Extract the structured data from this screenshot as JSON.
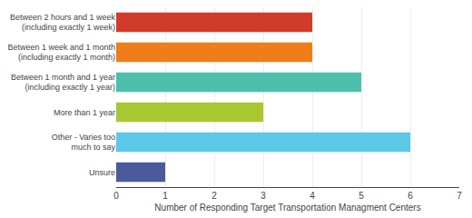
{
  "chart_data": {
    "type": "bar",
    "orientation": "horizontal",
    "categories": [
      "Between 2 hours and 1 week\n(including exactly 1 week)",
      "Between 1 week and 1 month\n(including exactly 1 month)",
      "Between 1 month and 1 year\n(including exactly 1 year)",
      "More than 1 year",
      "Other - Varies too\nmuch to say",
      "Unsure"
    ],
    "values": [
      4,
      4,
      5,
      3,
      6,
      1
    ],
    "colors": [
      "#d13b2a",
      "#f07d1a",
      "#4dbfad",
      "#a8c832",
      "#5bc8e8",
      "#4a5a9a"
    ],
    "xlabel": "Number of Responding Target Transportation Managment Centers",
    "xlim": [
      0,
      7
    ],
    "xticks": [
      0,
      1,
      2,
      3,
      4,
      5,
      6,
      7
    ],
    "grid": true
  }
}
